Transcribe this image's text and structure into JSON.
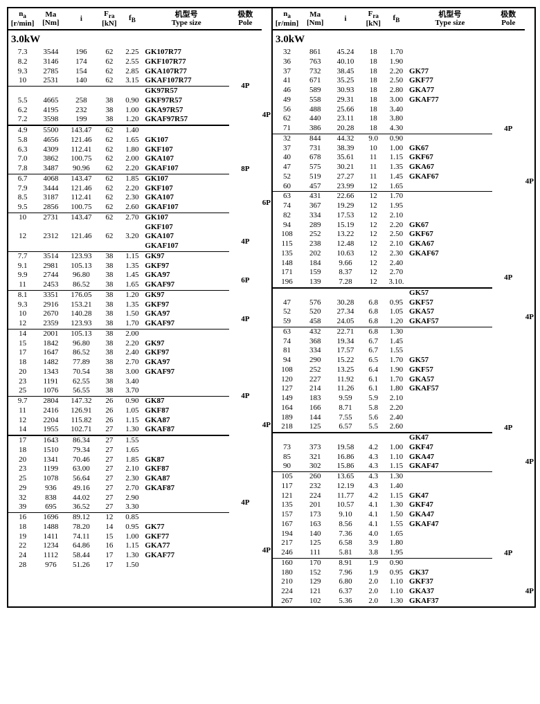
{
  "headers": {
    "na": "n",
    "na_sub": "a",
    "na_unit": "[r/min]",
    "ma": "Ma",
    "ma_unit": "[Nm]",
    "i": "i",
    "fra": "F",
    "fra_sub": "ra",
    "fra_unit": "[kN]",
    "fb": "f",
    "fb_sub": "B",
    "ts_cn": "机型号",
    "ts_en": "Type size",
    "pole_cn": "极数",
    "pole_en": "Pole"
  },
  "power": "3.0kW",
  "left_rows": [
    {
      "na": "7.3",
      "ma": "3544",
      "i": "196",
      "fra": "62",
      "fb": "2.25",
      "ts": "GK107R77"
    },
    {
      "na": "8.2",
      "ma": "3146",
      "i": "174",
      "fra": "62",
      "fb": "2.55",
      "ts": "GKF107R77"
    },
    {
      "na": "9.3",
      "ma": "2785",
      "i": "154",
      "fra": "62",
      "fb": "2.85",
      "ts": "GKA107R77",
      "pole": "4P",
      "prs": 4
    },
    {
      "na": "10",
      "ma": "2531",
      "i": "140",
      "fra": "62",
      "fb": "3.15",
      "ts": "GKAF107R77",
      "hr": 1
    },
    {
      "ts": "GK97R57"
    },
    {
      "na": "5.5",
      "ma": "4665",
      "i": "258",
      "fra": "38",
      "fb": "0.90",
      "ts": "GKF97R57",
      "pole": "4P",
      "prs": 4
    },
    {
      "na": "6.2",
      "ma": "4195",
      "i": "232",
      "fra": "38",
      "fb": "1.00",
      "ts": "GKA97R57"
    },
    {
      "na": "7.2",
      "ma": "3598",
      "i": "199",
      "fra": "38",
      "fb": "1.20",
      "ts": "GKAF97R57",
      "hr": 2
    },
    {
      "na": "4.9",
      "ma": "5500",
      "i": "143.47",
      "fra": "62",
      "fb": "1.40"
    },
    {
      "na": "5.8",
      "ma": "4656",
      "i": "121.46",
      "fra": "62",
      "fb": "1.65",
      "ts": "GK107"
    },
    {
      "na": "6.3",
      "ma": "4309",
      "i": "112.41",
      "fra": "62",
      "fb": "1.80",
      "ts": "GKF107",
      "pole": "8P",
      "prs": 5
    },
    {
      "na": "7.0",
      "ma": "3862",
      "i": "100.75",
      "fra": "62",
      "fb": "2.00",
      "ts": "GKA107"
    },
    {
      "na": "7.8",
      "ma": "3487",
      "i": "90.96",
      "fra": "62",
      "fb": "2.20",
      "ts": "GKAF107",
      "hr": 1
    },
    {
      "na": "6.7",
      "ma": "4068",
      "i": "143.47",
      "fra": "62",
      "fb": "1.85",
      "ts": "GK107"
    },
    {
      "na": "7.9",
      "ma": "3444",
      "i": "121.46",
      "fra": "62",
      "fb": "2.20",
      "ts": "GKF107",
      "pole": "6P",
      "prs": 4
    },
    {
      "na": "8.5",
      "ma": "3187",
      "i": "112.41",
      "fra": "62",
      "fb": "2.30",
      "ts": "GKA107"
    },
    {
      "na": "9.5",
      "ma": "2856",
      "i": "100.75",
      "fra": "62",
      "fb": "2.60",
      "ts": "GKAF107",
      "hr": 1
    },
    {
      "na": "10",
      "ma": "2731",
      "i": "143.47",
      "fra": "62",
      "fb": "2.70",
      "ts": "GK107"
    },
    {
      "ts": "GKF107",
      "pole": "4P",
      "prs": 4
    },
    {
      "na": "12",
      "ma": "2312",
      "i": "121.46",
      "fra": "62",
      "fb": "3.20",
      "ts": "GKA107"
    },
    {
      "ts": "GKAF107",
      "hr": 1
    },
    {
      "na": "7.7",
      "ma": "3514",
      "i": "123.93",
      "fra": "38",
      "fb": "1.15",
      "ts": "GK97"
    },
    {
      "na": "9.1",
      "ma": "2981",
      "i": "105.13",
      "fra": "38",
      "fb": "1.35",
      "ts": "GKF97",
      "pole": "6P",
      "prs": 4
    },
    {
      "na": "9.9",
      "ma": "2744",
      "i": "96.80",
      "fra": "38",
      "fb": "1.45",
      "ts": "GKA97"
    },
    {
      "na": "11",
      "ma": "2453",
      "i": "86.52",
      "fra": "38",
      "fb": "1.65",
      "ts": "GKAF97",
      "hr": 1
    },
    {
      "na": "8.1",
      "ma": "3351",
      "i": "176.05",
      "fra": "38",
      "fb": "1.20",
      "ts": "GK97"
    },
    {
      "na": "9.3",
      "ma": "2916",
      "i": "153.21",
      "fra": "38",
      "fb": "1.35",
      "ts": "GKF97",
      "pole": "4P",
      "prs": 4
    },
    {
      "na": "10",
      "ma": "2670",
      "i": "140.28",
      "fra": "38",
      "fb": "1.50",
      "ts": "GKA97"
    },
    {
      "na": "12",
      "ma": "2359",
      "i": "123.93",
      "fra": "38",
      "fb": "1.70",
      "ts": "GKAF97",
      "hr": 1
    },
    {
      "na": "14",
      "ma": "2001",
      "i": "105.13",
      "fra": "38",
      "fb": "2.00"
    },
    {
      "na": "15",
      "ma": "1842",
      "i": "96.80",
      "fra": "38",
      "fb": "2.20",
      "ts": "GK97"
    },
    {
      "na": "17",
      "ma": "1647",
      "i": "86.52",
      "fra": "38",
      "fb": "2.40",
      "ts": "GKF97"
    },
    {
      "na": "18",
      "ma": "1482",
      "i": "77.89",
      "fra": "38",
      "fb": "2.70",
      "ts": "GKA97",
      "pole": "4P",
      "prs": 8
    },
    {
      "na": "20",
      "ma": "1343",
      "i": "70.54",
      "fra": "38",
      "fb": "3.00",
      "ts": "GKAF97"
    },
    {
      "na": "23",
      "ma": "1191",
      "i": "62.55",
      "fra": "38",
      "fb": "3.40"
    },
    {
      "na": "25",
      "ma": "1076",
      "i": "56.55",
      "fra": "38",
      "fb": "3.70",
      "hr": 1
    },
    {
      "na": "9.7",
      "ma": "2804",
      "i": "147.32",
      "fra": "26",
      "fb": "0.90",
      "ts": "GK87"
    },
    {
      "na": "11",
      "ma": "2416",
      "i": "126.91",
      "fra": "26",
      "fb": "1.05",
      "ts": "GKF87",
      "pole": "4P",
      "prs": 4
    },
    {
      "na": "12",
      "ma": "2204",
      "i": "115.82",
      "fra": "26",
      "fb": "1.15",
      "ts": "GKA87"
    },
    {
      "na": "14",
      "ma": "1955",
      "i": "102.71",
      "fra": "27",
      "fb": "1.30",
      "ts": "GKAF87",
      "hr": 2
    },
    {
      "na": "17",
      "ma": "1643",
      "i": "86.34",
      "fra": "27",
      "fb": "1.55"
    },
    {
      "na": "18",
      "ma": "1510",
      "i": "79.34",
      "fra": "27",
      "fb": "1.65"
    },
    {
      "na": "20",
      "ma": "1341",
      "i": "70.46",
      "fra": "27",
      "fb": "1.85",
      "ts": "GK87"
    },
    {
      "na": "23",
      "ma": "1199",
      "i": "63.00",
      "fra": "27",
      "fb": "2.10",
      "ts": "GKF87",
      "pole": "4P",
      "prs": 8
    },
    {
      "na": "25",
      "ma": "1078",
      "i": "56.64",
      "fra": "27",
      "fb": "2.30",
      "ts": "GKA87"
    },
    {
      "na": "29",
      "ma": "936",
      "i": "49.16",
      "fra": "27",
      "fb": "2.70",
      "ts": "GKAF87"
    },
    {
      "na": "32",
      "ma": "838",
      "i": "44.02",
      "fra": "27",
      "fb": "2.90"
    },
    {
      "na": "39",
      "ma": "695",
      "i": "36.52",
      "fra": "27",
      "fb": "3.30",
      "hr": 1
    },
    {
      "na": "16",
      "ma": "1696",
      "i": "89.12",
      "fra": "12",
      "fb": "0.85"
    },
    {
      "na": "18",
      "ma": "1488",
      "i": "78.20",
      "fra": "14",
      "fb": "0.95",
      "ts": "GK77"
    },
    {
      "na": "19",
      "ma": "1411",
      "i": "74.11",
      "fra": "15",
      "fb": "1.00",
      "ts": "GKF77",
      "pole": "4P",
      "prs": 6
    },
    {
      "na": "22",
      "ma": "1234",
      "i": "64.86",
      "fra": "16",
      "fb": "1.15",
      "ts": "GKA77"
    },
    {
      "na": "24",
      "ma": "1112",
      "i": "58.44",
      "fra": "17",
      "fb": "1.30",
      "ts": "GKAF77"
    },
    {
      "na": "28",
      "ma": "976",
      "i": "51.26",
      "fra": "17",
      "fb": "1.50"
    }
  ],
  "right_rows": [
    {
      "na": "32",
      "ma": "861",
      "i": "45.24",
      "fra": "18",
      "fb": "1.70"
    },
    {
      "na": "36",
      "ma": "763",
      "i": "40.10",
      "fra": "18",
      "fb": "1.90"
    },
    {
      "na": "37",
      "ma": "732",
      "i": "38.45",
      "fra": "18",
      "fb": "2.20",
      "ts": "GK77"
    },
    {
      "na": "41",
      "ma": "671",
      "i": "35.25",
      "fra": "18",
      "fb": "2.50",
      "ts": "GKF77"
    },
    {
      "na": "46",
      "ma": "589",
      "i": "30.93",
      "fra": "18",
      "fb": "2.80",
      "ts": "GKA77",
      "pole": "4P",
      "prs": 9
    },
    {
      "na": "49",
      "ma": "558",
      "i": "29.31",
      "fra": "18",
      "fb": "3.00",
      "ts": "GKAF77"
    },
    {
      "na": "56",
      "ma": "488",
      "i": "25.66",
      "fra": "18",
      "fb": "3.40"
    },
    {
      "na": "62",
      "ma": "440",
      "i": "23.11",
      "fra": "18",
      "fb": "3.80"
    },
    {
      "na": "71",
      "ma": "386",
      "i": "20.28",
      "fra": "18",
      "fb": "4.30",
      "hr": 1
    },
    {
      "na": "32",
      "ma": "844",
      "i": "44.32",
      "fra": "9.0",
      "fb": "0.90"
    },
    {
      "na": "37",
      "ma": "731",
      "i": "38.39",
      "fra": "10",
      "fb": "1.00",
      "ts": "GK67"
    },
    {
      "na": "40",
      "ma": "678",
      "i": "35.61",
      "fra": "11",
      "fb": "1.15",
      "ts": "GKF67",
      "pole": "4P",
      "prs": 6
    },
    {
      "na": "47",
      "ma": "575",
      "i": "30.21",
      "fra": "11",
      "fb": "1.35",
      "ts": "GKA67"
    },
    {
      "na": "52",
      "ma": "519",
      "i": "27.27",
      "fra": "11",
      "fb": "1.45",
      "ts": "GKAF67"
    },
    {
      "na": "60",
      "ma": "457",
      "i": "23.99",
      "fra": "12",
      "fb": "1.65",
      "hr": 1
    },
    {
      "na": "63",
      "ma": "431",
      "i": "22.66",
      "fra": "12",
      "fb": "1.70"
    },
    {
      "na": "74",
      "ma": "367",
      "i": "19.29",
      "fra": "12",
      "fb": "1.95"
    },
    {
      "na": "82",
      "ma": "334",
      "i": "17.53",
      "fra": "12",
      "fb": "2.10"
    },
    {
      "na": "94",
      "ma": "289",
      "i": "15.19",
      "fra": "12",
      "fb": "2.20",
      "ts": "GK67"
    },
    {
      "na": "108",
      "ma": "252",
      "i": "13.22",
      "fra": "12",
      "fb": "2.50",
      "ts": "GKF67",
      "pole": "4P",
      "prs": 10
    },
    {
      "na": "115",
      "ma": "238",
      "i": "12.48",
      "fra": "12",
      "fb": "2.10",
      "ts": "GKA67"
    },
    {
      "na": "135",
      "ma": "202",
      "i": "10.63",
      "fra": "12",
      "fb": "2.30",
      "ts": "GKAF67"
    },
    {
      "na": "148",
      "ma": "184",
      "i": "9.66",
      "fra": "12",
      "fb": "2.40"
    },
    {
      "na": "171",
      "ma": "159",
      "i": "8.37",
      "fra": "12",
      "fb": "2.70"
    },
    {
      "na": "196",
      "ma": "139",
      "i": "7.28",
      "fra": "12",
      "fb": "3.10.",
      "hr": 2
    },
    {
      "ts": "GK57"
    },
    {
      "na": "47",
      "ma": "576",
      "i": "30.28",
      "fra": "6.8",
      "fb": "0.95",
      "ts": "GKF57",
      "pole": "4P",
      "prs": 4
    },
    {
      "na": "52",
      "ma": "520",
      "i": "27.34",
      "fra": "6.8",
      "fb": "1.05",
      "ts": "GKA57"
    },
    {
      "na": "59",
      "ma": "458",
      "i": "24.05",
      "fra": "6.8",
      "fb": "1.20",
      "ts": "GKAF57",
      "hr": 1
    },
    {
      "na": "63",
      "ma": "432",
      "i": "22.71",
      "fra": "6.8",
      "fb": "1.30"
    },
    {
      "na": "74",
      "ma": "368",
      "i": "19.34",
      "fra": "6.7",
      "fb": "1.45"
    },
    {
      "na": "81",
      "ma": "334",
      "i": "17.57",
      "fra": "6.7",
      "fb": "1.55"
    },
    {
      "na": "94",
      "ma": "290",
      "i": "15.22",
      "fra": "6.5",
      "fb": "1.70",
      "ts": "GK57"
    },
    {
      "na": "108",
      "ma": "252",
      "i": "13.25",
      "fra": "6.4",
      "fb": "1.90",
      "ts": "GKF57"
    },
    {
      "na": "120",
      "ma": "227",
      "i": "11.92",
      "fra": "6.1",
      "fb": "1.70",
      "ts": "GKA57",
      "pole": "4P",
      "prs": 11
    },
    {
      "na": "127",
      "ma": "214",
      "i": "11.26",
      "fra": "6.1",
      "fb": "1.80",
      "ts": "GKAF57"
    },
    {
      "na": "149",
      "ma": "183",
      "i": "9.59",
      "fra": "5.9",
      "fb": "2.10"
    },
    {
      "na": "164",
      "ma": "166",
      "i": "8.71",
      "fra": "5.8",
      "fb": "2.20"
    },
    {
      "na": "189",
      "ma": "144",
      "i": "7.55",
      "fra": "5.6",
      "fb": "2.40"
    },
    {
      "na": "218",
      "ma": "125",
      "i": "6.57",
      "fra": "5.5",
      "fb": "2.60",
      "hr": 2
    },
    {
      "ts": "GK47"
    },
    {
      "na": "73",
      "ma": "373",
      "i": "19.58",
      "fra": "4.2",
      "fb": "1.00",
      "ts": "GKF47",
      "pole": "4P",
      "prs": 4
    },
    {
      "na": "85",
      "ma": "321",
      "i": "16.86",
      "fra": "4.3",
      "fb": "1.10",
      "ts": "GKA47"
    },
    {
      "na": "90",
      "ma": "302",
      "i": "15.86",
      "fra": "4.3",
      "fb": "1.15",
      "ts": "GKAF47",
      "hr": 1
    },
    {
      "na": "105",
      "ma": "260",
      "i": "13.65",
      "fra": "4.3",
      "fb": "1.30"
    },
    {
      "na": "117",
      "ma": "232",
      "i": "12.19",
      "fra": "4.3",
      "fb": "1.40"
    },
    {
      "na": "121",
      "ma": "224",
      "i": "11.77",
      "fra": "4.2",
      "fb": "1.15",
      "ts": "GK47"
    },
    {
      "na": "135",
      "ma": "201",
      "i": "10.57",
      "fra": "4.1",
      "fb": "1.30",
      "ts": "GKF47"
    },
    {
      "na": "157",
      "ma": "173",
      "i": "9.10",
      "fra": "4.1",
      "fb": "1.50",
      "ts": "GKA47",
      "pole": "4P",
      "prs": 9
    },
    {
      "na": "167",
      "ma": "163",
      "i": "8.56",
      "fra": "4.1",
      "fb": "1.55",
      "ts": "GKAF47"
    },
    {
      "na": "194",
      "ma": "140",
      "i": "7.36",
      "fra": "4.0",
      "fb": "1.65"
    },
    {
      "na": "217",
      "ma": "125",
      "i": "6.58",
      "fra": "3.9",
      "fb": "1.80"
    },
    {
      "na": "246",
      "ma": "111",
      "i": "5.81",
      "fra": "3.8",
      "fb": "1.95",
      "hr": 1
    },
    {
      "na": "160",
      "ma": "170",
      "i": "8.91",
      "fra": "1.9",
      "fb": "0.90"
    },
    {
      "na": "180",
      "ma": "152",
      "i": "7.96",
      "fra": "1.9",
      "fb": "0.95",
      "ts": "GK37"
    },
    {
      "na": "210",
      "ma": "129",
      "i": "6.80",
      "fra": "2.0",
      "fb": "1.10",
      "ts": "GKF37",
      "pole": "4P",
      "prs": 5
    },
    {
      "na": "224",
      "ma": "121",
      "i": "6.37",
      "fra": "2.0",
      "fb": "1.10",
      "ts": "GKA37"
    },
    {
      "na": "267",
      "ma": "102",
      "i": "5.36",
      "fra": "2.0",
      "fb": "1.30",
      "ts": "GKAF37"
    }
  ]
}
